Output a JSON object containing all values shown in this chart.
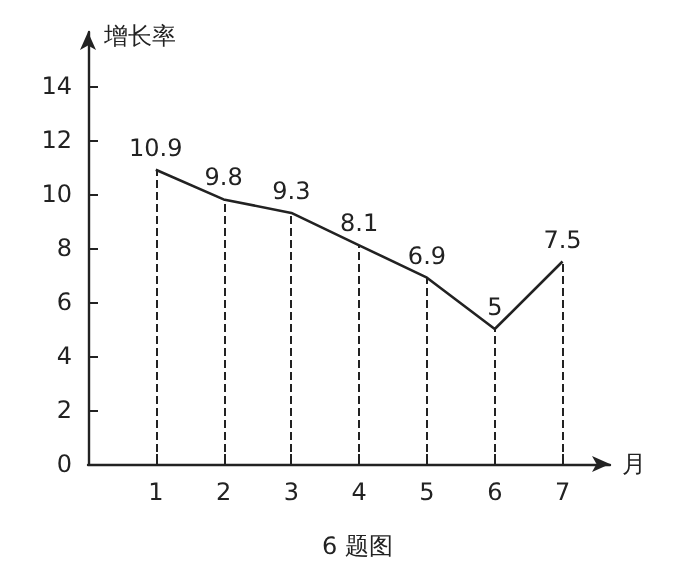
{
  "chart_data": {
    "type": "line",
    "ylabel": "增长率",
    "xlabel": "月",
    "annotations": [
      "6 题图"
    ],
    "x": [
      1,
      2,
      3,
      4,
      5,
      6,
      7
    ],
    "values": [
      10.9,
      9.8,
      9.3,
      8.1,
      6.9,
      5,
      7.5
    ],
    "color": "#222222",
    "xlim": [
      0,
      7.7
    ],
    "xticks": [
      1,
      2,
      3,
      4,
      5,
      6,
      7
    ],
    "ylim": [
      0,
      16
    ],
    "yticks": [
      0,
      2,
      4,
      6,
      8,
      10,
      12,
      14
    ],
    "grid": false,
    "marker": "none",
    "line_style": "solid",
    "data_labels": true
  }
}
